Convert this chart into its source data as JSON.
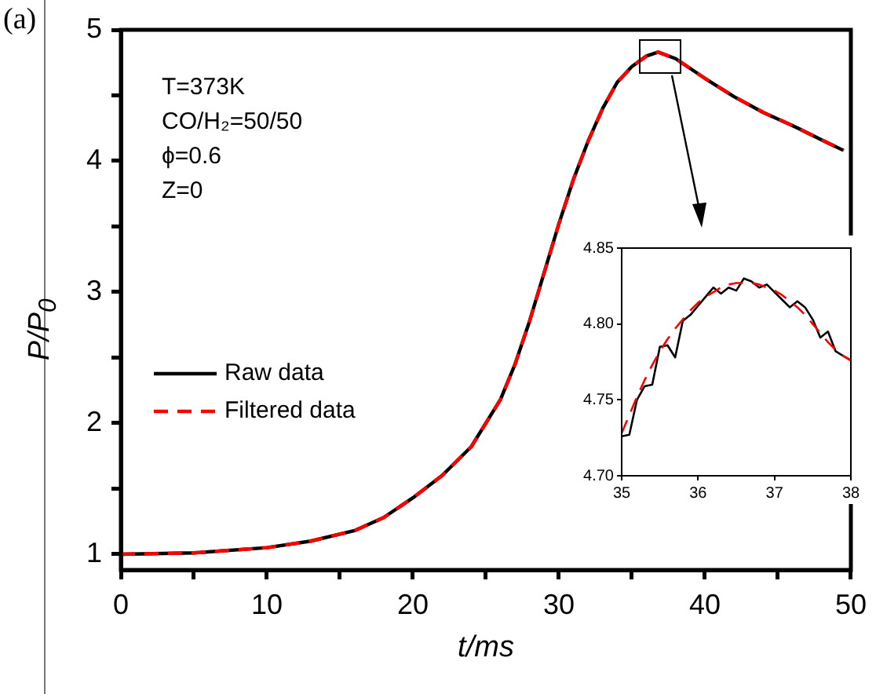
{
  "chart_data": [
    {
      "type": "line",
      "xlabel": "t/ms",
      "ylabel": "P/P$_{0}$",
      "annotations": [
        "(a)",
        "T=373K",
        "CO/H₂=50/50",
        "ϕ=0.6",
        "Z=0"
      ],
      "x": [
        0,
        5,
        10,
        13,
        16,
        18,
        20,
        22,
        24,
        26,
        27,
        28,
        29,
        30,
        31,
        32,
        33,
        34,
        35,
        36,
        36.8,
        38,
        40,
        42,
        44,
        46,
        48,
        49.5
      ],
      "series": [
        {
          "name": "Raw data",
          "color": "#000000",
          "line_style": "solid",
          "values": [
            1.0,
            1.01,
            1.05,
            1.1,
            1.18,
            1.28,
            1.43,
            1.6,
            1.82,
            2.18,
            2.45,
            2.78,
            3.15,
            3.52,
            3.86,
            4.15,
            4.4,
            4.6,
            4.72,
            4.8,
            4.83,
            4.78,
            4.63,
            4.49,
            4.37,
            4.27,
            4.16,
            4.08
          ]
        },
        {
          "name": "Filtered data",
          "color": "#ff0000",
          "line_style": "dashed",
          "values": [
            1.0,
            1.01,
            1.05,
            1.1,
            1.18,
            1.28,
            1.43,
            1.6,
            1.82,
            2.18,
            2.45,
            2.78,
            3.15,
            3.52,
            3.86,
            4.15,
            4.4,
            4.6,
            4.72,
            4.8,
            4.83,
            4.78,
            4.63,
            4.49,
            4.37,
            4.27,
            4.16,
            4.08
          ]
        }
      ],
      "xlim": [
        0,
        50
      ],
      "xticks": [
        0,
        {
          "value": 5,
          "label": null
        },
        10,
        {
          "value": 15,
          "label": null
        },
        20,
        {
          "value": 25,
          "label": null
        },
        30,
        {
          "value": 35,
          "label": null
        },
        40,
        {
          "value": 45,
          "label": null
        },
        50
      ],
      "ylim": [
        0.88,
        5
      ],
      "yticks": [
        1,
        {
          "value": 1.5,
          "label": null
        },
        2,
        {
          "value": 2.5,
          "label": null
        },
        3,
        {
          "value": 3.5,
          "label": null
        },
        4,
        {
          "value": 4.5,
          "label": null
        },
        5
      ],
      "legend": "center left",
      "grid": false
    },
    {
      "type": "line",
      "x": [
        35.0,
        35.1,
        35.2,
        35.3,
        35.4,
        35.5,
        35.6,
        35.7,
        35.8,
        35.9,
        36.0,
        36.1,
        36.2,
        36.3,
        36.4,
        36.5,
        36.6,
        36.7,
        36.8,
        36.9,
        37.0,
        37.1,
        37.2,
        37.3,
        37.4,
        37.5,
        37.6,
        37.7,
        37.8,
        37.9,
        38.0
      ],
      "series": [
        {
          "color": "#000000",
          "line_style": "solid",
          "values": [
            4.726,
            4.727,
            4.75,
            4.759,
            4.76,
            4.785,
            4.786,
            4.778,
            4.802,
            4.806,
            4.812,
            4.818,
            4.824,
            4.82,
            4.824,
            4.822,
            4.83,
            4.828,
            4.824,
            4.826,
            4.821,
            4.816,
            4.811,
            4.815,
            4.811,
            4.803,
            4.791,
            4.795,
            4.782,
            4.779,
            4.776
          ]
        },
        {
          "color": "#ff0000",
          "line_style": "dashed",
          "values": [
            4.728,
            4.74,
            4.752,
            4.763,
            4.773,
            4.782,
            4.79,
            4.797,
            4.803,
            4.809,
            4.814,
            4.818,
            4.821,
            4.824,
            4.826,
            4.827,
            4.827,
            4.827,
            4.826,
            4.824,
            4.822,
            4.819,
            4.815,
            4.811,
            4.806,
            4.8,
            4.794,
            4.788,
            4.783,
            4.779,
            4.776
          ]
        }
      ],
      "xlim": [
        35,
        38
      ],
      "xticks": [
        35,
        36,
        37,
        38
      ],
      "ylim": [
        4.7,
        4.85
      ],
      "yticks": [
        {
          "value": 4.7,
          "label": "4.70"
        },
        {
          "value": 4.75,
          "label": "4.75"
        },
        {
          "value": 4.8,
          "label": "4.80"
        },
        {
          "value": 4.85,
          "label": "4.85"
        }
      ],
      "grid": false
    }
  ]
}
